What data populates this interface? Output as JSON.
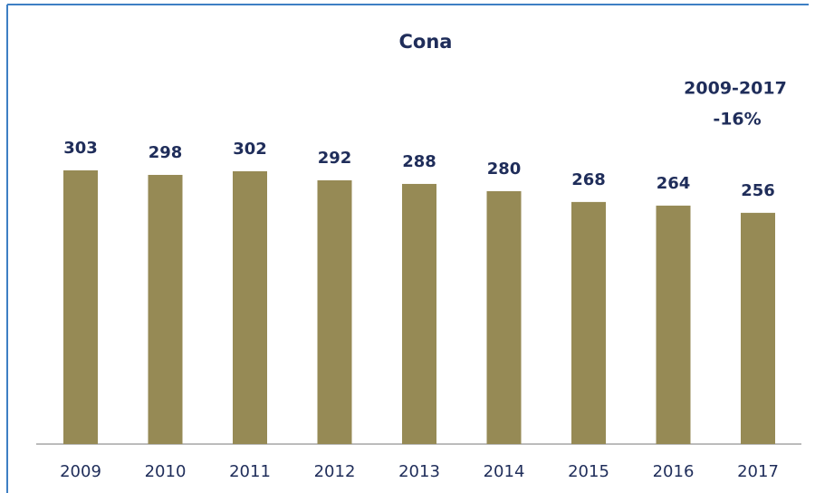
{
  "chart_data": {
    "type": "bar",
    "title": "Cona",
    "annotation": [
      "2009-2017",
      "-16%"
    ],
    "categories": [
      "2009",
      "2010",
      "2011",
      "2012",
      "2013",
      "2014",
      "2015",
      "2016",
      "2017"
    ],
    "values": [
      303,
      298,
      302,
      292,
      288,
      280,
      268,
      264,
      256
    ],
    "color": "#968a55"
  }
}
